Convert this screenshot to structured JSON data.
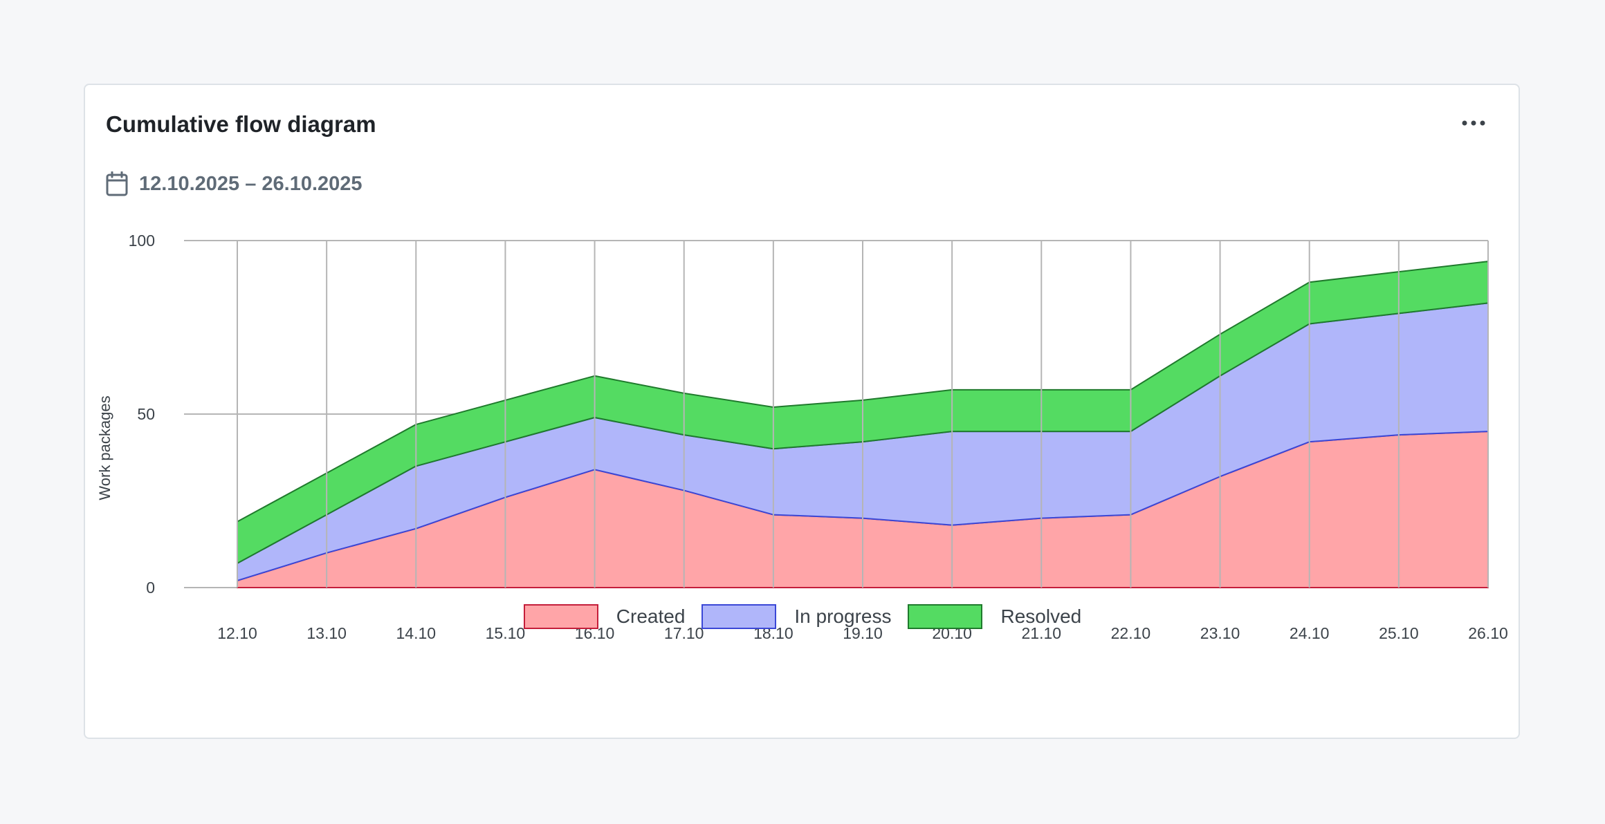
{
  "card": {
    "title": "Cumulative flow diagram",
    "menu_icon": "more-horizontal-icon",
    "date_icon": "calendar-icon",
    "date_range": "12.10.2025 – 26.10.2025"
  },
  "colors": {
    "created_fill": "#ffa5a8",
    "created_stroke": "#c41e3a",
    "in_progress_fill": "#b0b6fa",
    "in_progress_stroke": "#3a47d6",
    "resolved_fill": "#54db62",
    "resolved_stroke": "#1f7a2c",
    "grid": "#b5b5b5"
  },
  "chart_data": {
    "type": "area",
    "stacked": true,
    "ylabel": "Work packages",
    "xlabel": "",
    "ylim": [
      0,
      100
    ],
    "yticks": [
      0,
      50,
      100
    ],
    "grid": true,
    "legend_position": "bottom",
    "categories": [
      "12.10",
      "13.10",
      "14.10",
      "15.10",
      "16.10",
      "17.10",
      "18.10",
      "19.10",
      "20.10",
      "21.10",
      "22.10",
      "23.10",
      "24.10",
      "25.10",
      "26.10"
    ],
    "series": [
      {
        "name": "Created",
        "values": [
          2,
          10,
          17,
          26,
          34,
          28,
          21,
          20,
          18,
          20,
          21,
          32,
          42,
          44,
          45
        ]
      },
      {
        "name": "In progress",
        "values": [
          5,
          11,
          18,
          16,
          15,
          16,
          19,
          22,
          27,
          25,
          24,
          29,
          34,
          35,
          37
        ]
      },
      {
        "name": "Resolved",
        "values": [
          12,
          12,
          12,
          12,
          12,
          12,
          12,
          12,
          12,
          12,
          12,
          12,
          12,
          12,
          12
        ]
      }
    ]
  }
}
